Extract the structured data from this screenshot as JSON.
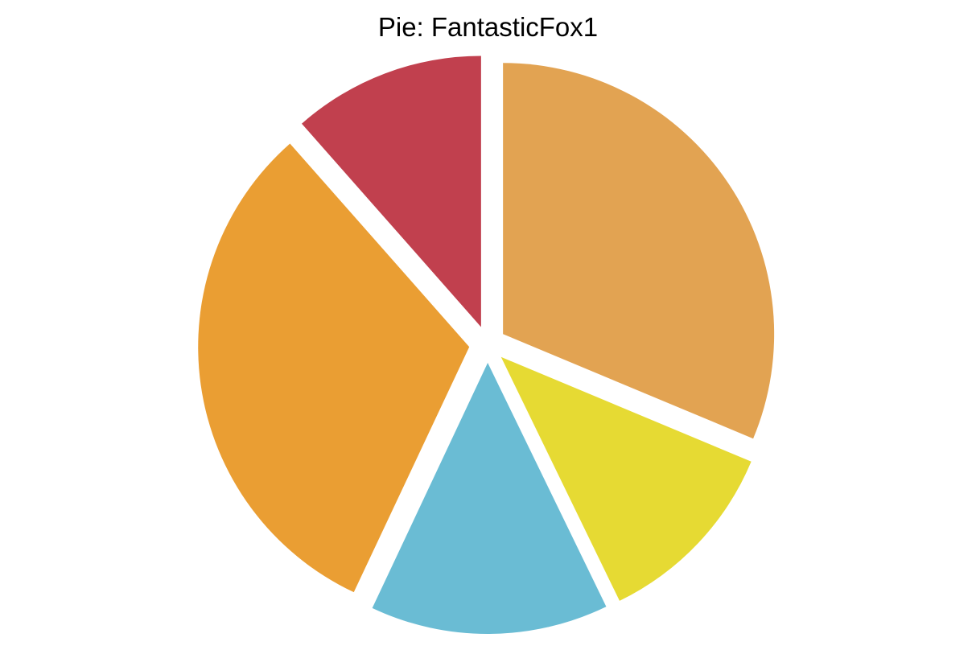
{
  "chart_data": {
    "type": "pie",
    "title": "Pie: FantasticFox1",
    "palette_name": "FantasticFox1",
    "start_angle": "12 o'clock",
    "direction": "clockwise",
    "exploded": true,
    "slices": [
      {
        "value": 0.313,
        "color": "#E2A352"
      },
      {
        "value": 0.115,
        "color": "#E6DA33"
      },
      {
        "value": 0.142,
        "color": "#6ABCD4"
      },
      {
        "value": 0.315,
        "color": "#EA9E33"
      },
      {
        "value": 0.115,
        "color": "#C1404E"
      }
    ]
  }
}
